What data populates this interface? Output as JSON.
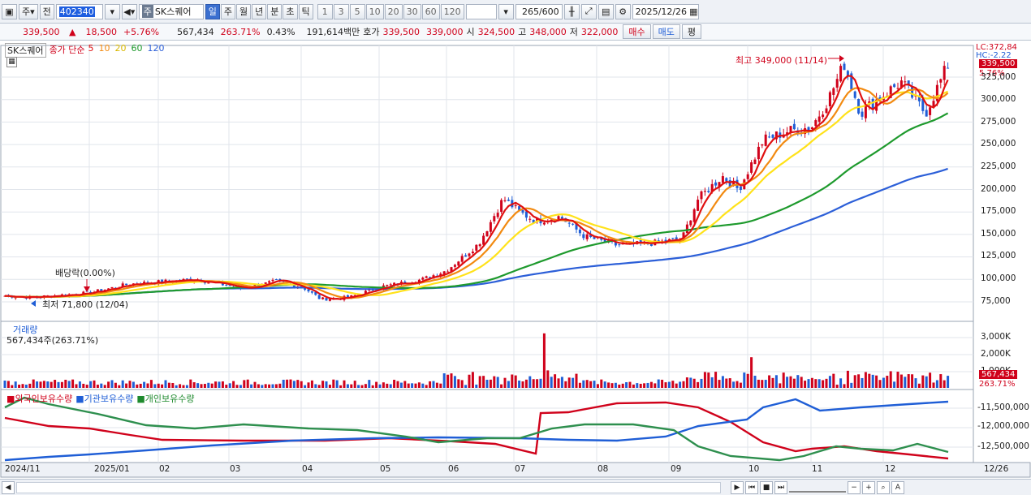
{
  "toolbar": {
    "market": "주",
    "prev": "전",
    "code": "402340",
    "stock_name": "SK스퀘어",
    "periods": [
      "일",
      "주",
      "월",
      "년",
      "분",
      "초",
      "틱"
    ],
    "active_period": "일",
    "nums": [
      "1",
      "3",
      "5",
      "10",
      "20",
      "30",
      "60",
      "120"
    ],
    "count": "265",
    "count_total": "/600",
    "date": "2025/12/26"
  },
  "quote": {
    "price": "339,500",
    "arrow": "▲",
    "change": "18,500",
    "change_pct": "+5.76%",
    "volume": "567,434",
    "vol_ratio": "263.71%",
    "turnover": "0.43%",
    "amount": "191,614백만",
    "bid_label": "호가",
    "ask": "339,500",
    "bid": "339,000",
    "open_label": "시",
    "open": "324,500",
    "high_label": "고",
    "high": "348,000",
    "low_label": "저",
    "low": "322,000",
    "buy": "매수",
    "sell": "매도",
    "avg": "평"
  },
  "legend": {
    "stock": "SK스퀘어",
    "price_type": "종가 단순",
    "ma": [
      "5",
      "10",
      "20",
      "60",
      "120"
    ]
  },
  "colors": {
    "up": "#d0021b",
    "down": "#1f5ed6",
    "ma5": "#e01010",
    "ma10": "#f28a10",
    "ma20": "#ffe21a",
    "ma60": "#1e9a2d",
    "ma120": "#2c5fd8"
  },
  "annotations": {
    "high": "최고 349,000 (11/14)",
    "low": "최저 71,800 (12/04)",
    "dividend": "배당락(0.00%)"
  },
  "y_axis": {
    "lc": "LC:372,84",
    "hc": "HC:-2.22",
    "price_tag": "339,500",
    "pct_tag": "5.76%",
    "ticks": [
      "325,000",
      "300,000",
      "275,000",
      "250,000",
      "225,000",
      "200,000",
      "175,000",
      "150,000",
      "125,000",
      "100,000",
      "75,000"
    ]
  },
  "volume": {
    "title": "거래량",
    "value": "567,434주(263.71%)",
    "ticks": [
      "3,000K",
      "2,000K",
      "1,000K"
    ],
    "tag": "567,434",
    "tag2": "263.71%"
  },
  "holdings": {
    "legend": [
      "외국인보유수량",
      "기관보유수량",
      "개인보유수량"
    ],
    "ticks": [
      "-11,500,000",
      "-12,000,000",
      "-12,500,000"
    ]
  },
  "x_axis": [
    "2024/11",
    "2025/01",
    "02",
    "03",
    "04",
    "05",
    "06",
    "07",
    "08",
    "09",
    "10",
    "11",
    "12",
    "12/26"
  ],
  "chart_data": {
    "type": "candlestick",
    "months": [
      "2024/11",
      "2025/01",
      "02",
      "03",
      "04",
      "05",
      "06",
      "07",
      "08",
      "09",
      "10",
      "11",
      "12"
    ],
    "monthly_close": [
      80000,
      87000,
      95000,
      90000,
      80000,
      92000,
      100000,
      175000,
      140000,
      145000,
      255000,
      310000,
      339500
    ],
    "high": {
      "value": 349000,
      "date": "11/14"
    },
    "low": {
      "value": 71800,
      "date": "12/04"
    },
    "last": {
      "date": "2025/12/26",
      "close": 339500,
      "open": 324500,
      "high": 348000,
      "low": 322000,
      "volume": 567434
    }
  }
}
